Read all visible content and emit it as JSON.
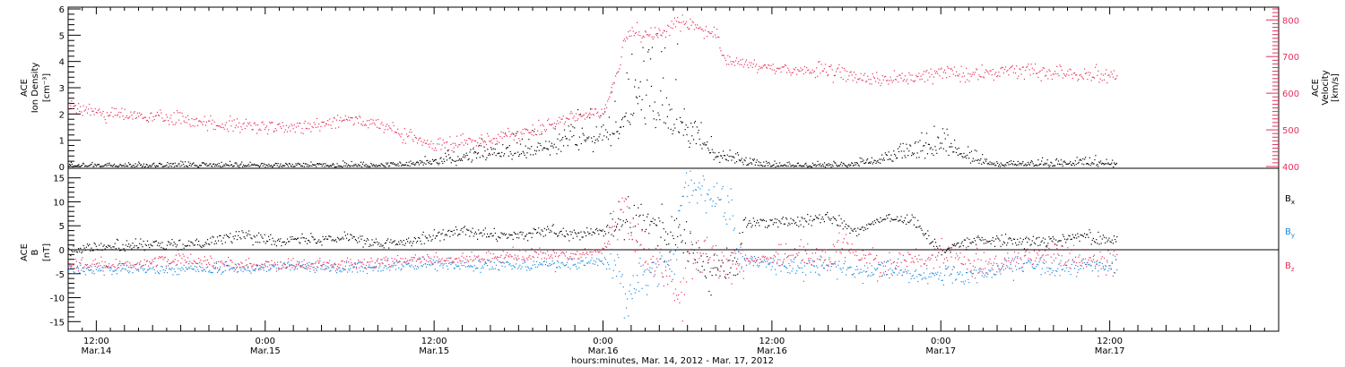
{
  "chart_data": [
    {
      "type": "scatter",
      "title": "",
      "ylabel_left": [
        "ACE",
        "Ion Density",
        "[cm⁻³]"
      ],
      "ylabel_right": [
        "ACE",
        "Velocity",
        "[km/s]"
      ],
      "ylim_left": [
        0,
        6
      ],
      "yticks_left": [
        "0",
        "1",
        "2",
        "3",
        "4",
        "5",
        "6"
      ],
      "ylim_right": [
        400,
        830
      ],
      "yticks_right": [
        "400",
        "500",
        "600",
        "700",
        "800"
      ],
      "x_range_hours": [
        -2,
        84
      ],
      "data_end_hour": 72.5,
      "series": [
        {
          "name": "",
          "color": "#000000",
          "axis": "left",
          "x": [
            -2,
            6,
            12,
            16,
            20,
            24,
            26,
            28,
            30,
            32,
            34,
            36,
            37,
            38,
            38.8,
            39.5,
            40,
            41,
            42,
            43,
            44,
            45,
            46,
            47,
            48,
            50,
            52,
            54,
            56,
            58,
            60,
            62,
            63,
            64,
            66,
            68,
            70,
            72.5
          ],
          "values": [
            0.05,
            0.05,
            0.05,
            0.05,
            0.05,
            0.15,
            0.3,
            0.5,
            0.6,
            0.8,
            1.0,
            1.3,
            1.4,
            2.1,
            3.0,
            2.5,
            2.0,
            1.6,
            1.5,
            1.0,
            0.4,
            0.3,
            0.2,
            0.1,
            0.05,
            0.05,
            0.05,
            0.1,
            0.3,
            0.5,
            0.9,
            0.4,
            0.2,
            0.1,
            0.1,
            0.1,
            0.15,
            0.1
          ]
        },
        {
          "name": "",
          "color": "#e8305c",
          "axis": "right",
          "x": [
            -2,
            2,
            6,
            10,
            14,
            18,
            21,
            24,
            27,
            28,
            30,
            32,
            34,
            36,
            37,
            37.5,
            38,
            40,
            41.5,
            42.5,
            43,
            44,
            44.5,
            45,
            48,
            52,
            55,
            58,
            60,
            62,
            64,
            66,
            68,
            70,
            72.5
          ],
          "values": [
            565,
            540,
            530,
            510,
            505,
            535,
            500,
            455,
            475,
            480,
            490,
            510,
            535,
            555,
            650,
            755,
            770,
            760,
            800,
            780,
            770,
            760,
            690,
            690,
            670,
            660,
            640,
            640,
            660,
            650,
            660,
            665,
            660,
            655,
            650
          ]
        }
      ]
    },
    {
      "type": "scatter",
      "title": "",
      "ylabel_left": [
        "ACE",
        "B",
        "[nT]"
      ],
      "ylim": [
        -17,
        17
      ],
      "yticks": [
        "-15",
        "-10",
        "-5",
        "0",
        "5",
        "10",
        "15"
      ],
      "x_range_hours": [
        -2,
        84
      ],
      "data_end_hour": 72.5,
      "legend": "right",
      "series": [
        {
          "name": "Bx",
          "color": "#000000",
          "x": [
            -2,
            2,
            6,
            10,
            14,
            18,
            20,
            22,
            24,
            26,
            28,
            30,
            32,
            34,
            36,
            37,
            38,
            40,
            41.5,
            42.5,
            43.5,
            44.5,
            45.5,
            46,
            48,
            50,
            52,
            54,
            56,
            58,
            60,
            62,
            64,
            66,
            68,
            70,
            72.5
          ],
          "values": [
            0,
            1,
            1,
            3,
            2,
            3,
            1,
            2,
            3,
            4,
            3,
            3,
            4,
            3,
            4,
            5,
            6,
            5,
            3,
            -1,
            -5,
            -4,
            -3,
            6,
            6,
            6,
            7,
            4,
            7,
            6,
            0,
            2,
            2,
            2,
            2,
            3,
            2
          ]
        },
        {
          "name": "By",
          "color": "#1a8ae0",
          "x": [
            -2,
            2,
            6,
            10,
            14,
            18,
            22,
            26,
            30,
            34,
            36,
            37,
            37.5,
            38,
            39,
            40,
            41,
            41.5,
            42,
            43,
            44,
            45,
            45.5,
            46,
            48,
            50,
            52,
            54,
            56,
            58,
            60,
            62,
            64,
            66,
            68,
            70,
            72.5
          ],
          "values": [
            -4,
            -4,
            -4,
            -4,
            -3,
            -4,
            -3,
            -3,
            -3,
            -3,
            -2,
            -5,
            -10,
            -8,
            -5,
            -4,
            -3,
            10,
            14,
            13,
            11,
            9,
            -1,
            -2,
            -3,
            -4,
            -3,
            -4,
            -4,
            -5,
            -5,
            -6,
            -4,
            -3,
            -4,
            -3,
            -3
          ]
        },
        {
          "name": "Bz",
          "color": "#e8305c",
          "x": [
            -2,
            2,
            6,
            10,
            14,
            18,
            22,
            26,
            30,
            34,
            36,
            37,
            37.5,
            38,
            39,
            40,
            41,
            41.5,
            42,
            43,
            44,
            45,
            46,
            48,
            50,
            52,
            53,
            54,
            56,
            58,
            60,
            62,
            64,
            66,
            68,
            70,
            72.5
          ],
          "values": [
            -3,
            -3,
            -2,
            -3,
            -3,
            -3,
            -2,
            -2,
            -1,
            -1,
            0,
            5,
            12,
            3,
            -2,
            -3,
            -7,
            -12,
            -3,
            0,
            -2,
            -3,
            -2,
            -2,
            -1,
            -2,
            2,
            -1,
            -3,
            -2,
            -1,
            -2,
            -3,
            -2,
            -1,
            -2,
            -3
          ]
        }
      ]
    }
  ],
  "x_axis": {
    "xlabel": "hours:minutes, Mar. 14, 2012 - Mar. 17, 2012",
    "ticks": [
      {
        "hour": 0,
        "time": "12:00",
        "date": "Mar.14"
      },
      {
        "hour": 12,
        "time": "0:00",
        "date": "Mar.15"
      },
      {
        "hour": 24,
        "time": "12:00",
        "date": "Mar.15"
      },
      {
        "hour": 36,
        "time": "0:00",
        "date": "Mar.16"
      },
      {
        "hour": 48,
        "time": "12:00",
        "date": "Mar.16"
      },
      {
        "hour": 60,
        "time": "0:00",
        "date": "Mar.17"
      },
      {
        "hour": 72,
        "time": "12:00",
        "date": "Mar.17"
      }
    ]
  },
  "legend": [
    {
      "name": "B",
      "sub": "x",
      "color": "#000000"
    },
    {
      "name": "B",
      "sub": "y",
      "color": "#1a8ae0"
    },
    {
      "name": "B",
      "sub": "z",
      "color": "#e8305c"
    }
  ]
}
